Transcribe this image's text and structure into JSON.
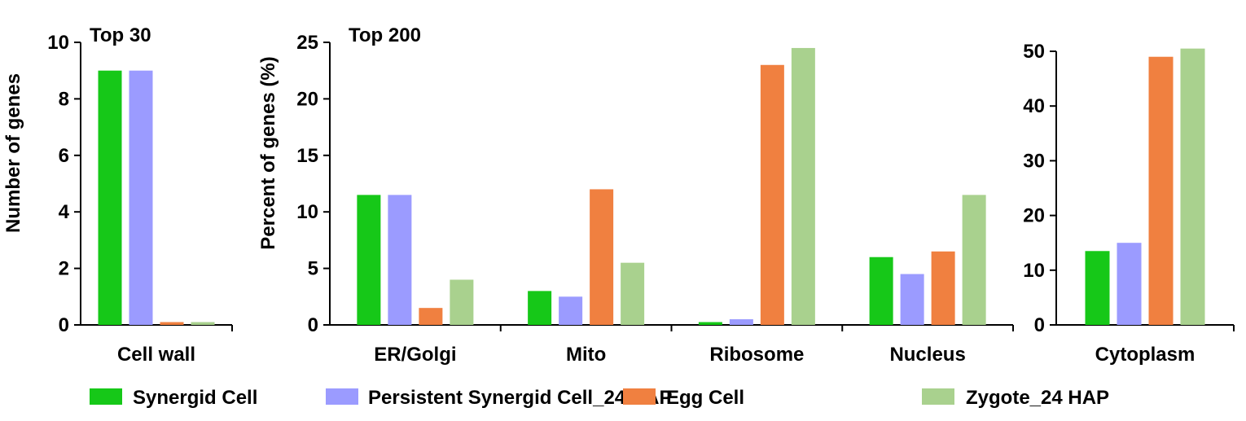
{
  "colors": {
    "synergid": "#16c818",
    "persistent": "#9b9bff",
    "egg": "#f08040",
    "zygote": "#a9d18e"
  },
  "legend": [
    {
      "label": "Synergid Cell",
      "color": "#16c818"
    },
    {
      "label": "Persistent Synergid Cell_24 HAP",
      "color": "#9b9bff"
    },
    {
      "label": "Egg Cell",
      "color": "#f08040"
    },
    {
      "label": "Zygote_24 HAP",
      "color": "#a9d18e"
    }
  ],
  "chart_data": [
    {
      "type": "bar",
      "title": "Top 30",
      "ylabel": "Number of genes",
      "xlabel": "",
      "ylim": [
        0,
        10
      ],
      "yticks": [
        0,
        2,
        4,
        6,
        8,
        10
      ],
      "categories": [
        "Cell wall"
      ],
      "series": [
        {
          "name": "Synergid Cell",
          "values": [
            9
          ]
        },
        {
          "name": "Persistent Synergid Cell_24 HAP",
          "values": [
            9
          ]
        },
        {
          "name": "Egg Cell",
          "values": [
            0.1
          ]
        },
        {
          "name": "Zygote_24 HAP",
          "values": [
            0.1
          ]
        }
      ]
    },
    {
      "type": "bar",
      "title": "Top 200",
      "ylabel": "Percent of genes (%)",
      "xlabel": "",
      "ylim": [
        0,
        25
      ],
      "yticks": [
        0,
        5,
        10,
        15,
        20,
        25
      ],
      "categories": [
        "ER/Golgi",
        "Mito",
        "Ribosome",
        "Nucleus"
      ],
      "series": [
        {
          "name": "Synergid Cell",
          "values": [
            11.5,
            3.0,
            0.25,
            6.0
          ]
        },
        {
          "name": "Persistent Synergid Cell_24 HAP",
          "values": [
            11.5,
            2.5,
            0.5,
            4.5
          ]
        },
        {
          "name": "Egg Cell",
          "values": [
            1.5,
            12.0,
            23.0,
            6.5
          ]
        },
        {
          "name": "Zygote_24 HAP",
          "values": [
            4.0,
            5.5,
            24.5,
            11.5
          ]
        }
      ]
    },
    {
      "type": "bar",
      "title": "",
      "ylabel": "",
      "xlabel": "",
      "ylim": [
        0,
        50
      ],
      "yticks": [
        0,
        10,
        20,
        30,
        40,
        50
      ],
      "categories": [
        "Cytoplasm"
      ],
      "series": [
        {
          "name": "Synergid Cell",
          "values": [
            13.5
          ]
        },
        {
          "name": "Persistent Synergid Cell_24 HAP",
          "values": [
            15
          ]
        },
        {
          "name": "Egg Cell",
          "values": [
            49
          ]
        },
        {
          "name": "Zygote_24 HAP",
          "values": [
            50.5
          ]
        }
      ]
    }
  ]
}
